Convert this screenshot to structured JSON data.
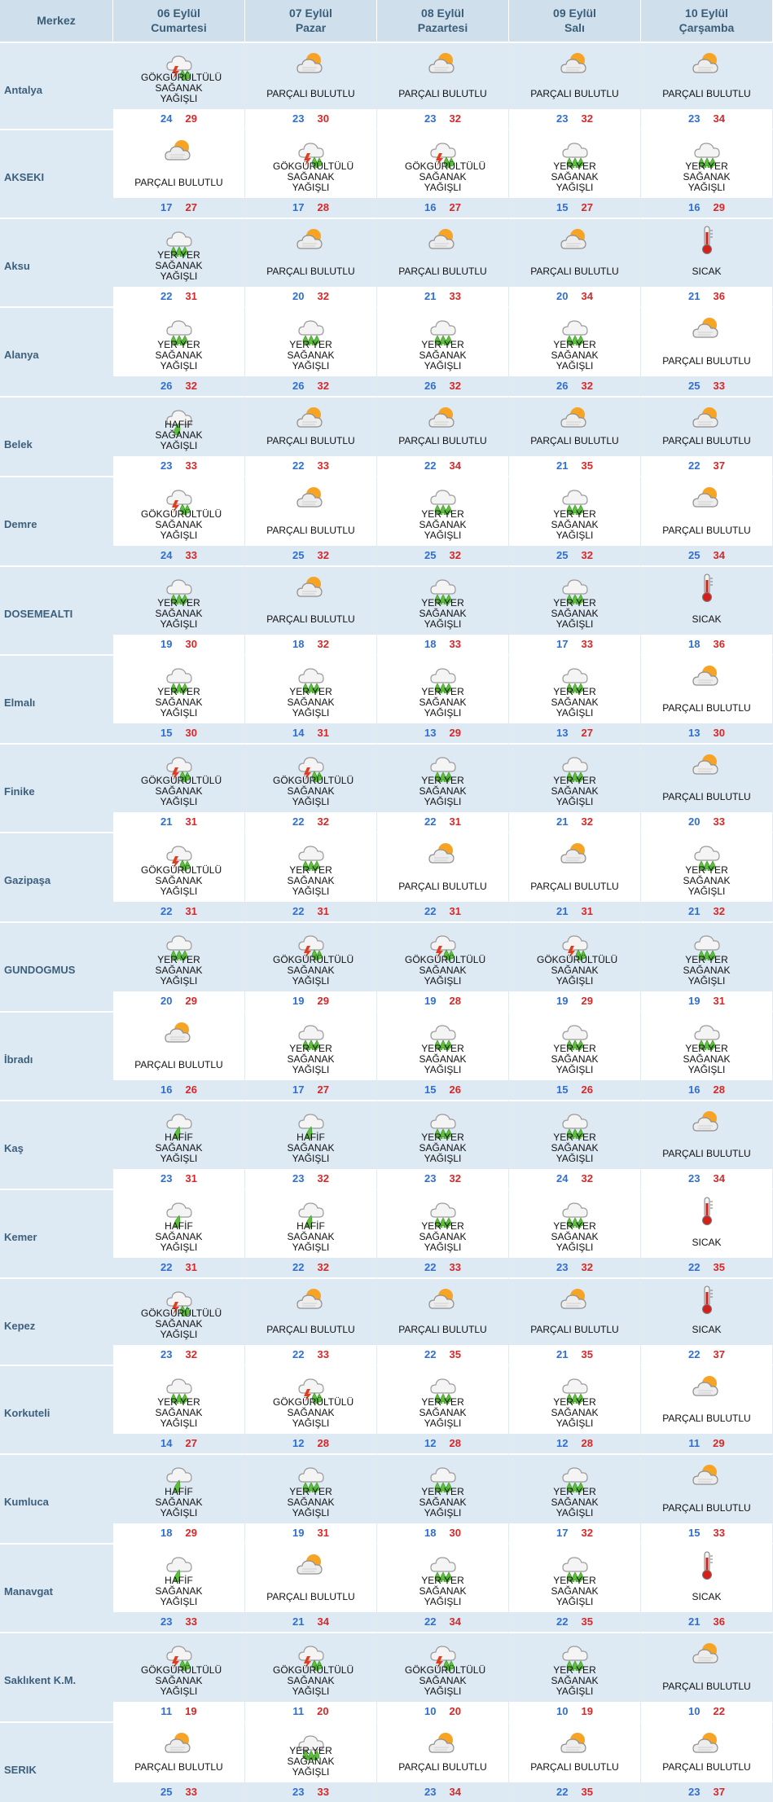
{
  "header": {
    "merkez": "Merkez",
    "days": [
      {
        "date": "06 Eylül",
        "weekday": "Cumartesi"
      },
      {
        "date": "07 Eylül",
        "weekday": "Pazar"
      },
      {
        "date": "08 Eylül",
        "weekday": "Pazartesi"
      },
      {
        "date": "09 Eylül",
        "weekday": "Salı"
      },
      {
        "date": "10 Eylül",
        "weekday": "Çarşamba"
      }
    ]
  },
  "conditions": {
    "T": "GÖKGÜRÜLTÜLÜ SAĞANAK YAĞIŞLI",
    "P": "PARÇALI BULUTLU",
    "Y": "YER YER SAĞANAK YAĞIŞLI",
    "H": "HAFİF SAĞANAK YAĞIŞLI",
    "S": "SICAK"
  },
  "icons": {
    "T": "thunderstorm-icon",
    "P": "partly-cloudy-icon",
    "Y": "scattered-showers-icon",
    "H": "light-showers-icon",
    "S": "thermometer-hot-icon"
  },
  "colors": {
    "header_bg": "#cfe0ec",
    "row_blue": "#dde9f3",
    "low_temp": "#2f6fd2",
    "high_temp": "#d62828"
  },
  "rows": [
    {
      "city": "Antalya",
      "days": [
        {
          "c": "T",
          "lo": 24,
          "hi": 29
        },
        {
          "c": "P",
          "lo": 23,
          "hi": 30
        },
        {
          "c": "P",
          "lo": 23,
          "hi": 32
        },
        {
          "c": "P",
          "lo": 23,
          "hi": 32
        },
        {
          "c": "P",
          "lo": 23,
          "hi": 34
        }
      ]
    },
    {
      "city": "AKSEKI",
      "days": [
        {
          "c": "P",
          "lo": 17,
          "hi": 27
        },
        {
          "c": "T",
          "lo": 17,
          "hi": 28
        },
        {
          "c": "T",
          "lo": 16,
          "hi": 27
        },
        {
          "c": "Y",
          "lo": 15,
          "hi": 27
        },
        {
          "c": "Y",
          "lo": 16,
          "hi": 29
        }
      ]
    },
    {
      "city": "Aksu",
      "days": [
        {
          "c": "Y",
          "lo": 22,
          "hi": 31
        },
        {
          "c": "P",
          "lo": 20,
          "hi": 32
        },
        {
          "c": "P",
          "lo": 21,
          "hi": 33
        },
        {
          "c": "P",
          "lo": 20,
          "hi": 34
        },
        {
          "c": "S",
          "lo": 21,
          "hi": 36
        }
      ]
    },
    {
      "city": "Alanya",
      "days": [
        {
          "c": "Y",
          "lo": 26,
          "hi": 32
        },
        {
          "c": "Y",
          "lo": 26,
          "hi": 32
        },
        {
          "c": "Y",
          "lo": 26,
          "hi": 32
        },
        {
          "c": "Y",
          "lo": 26,
          "hi": 32
        },
        {
          "c": "P",
          "lo": 25,
          "hi": 33
        }
      ]
    },
    {
      "city": "Belek",
      "days": [
        {
          "c": "H",
          "lo": 23,
          "hi": 33
        },
        {
          "c": "P",
          "lo": 22,
          "hi": 33
        },
        {
          "c": "P",
          "lo": 22,
          "hi": 34
        },
        {
          "c": "P",
          "lo": 21,
          "hi": 35
        },
        {
          "c": "P",
          "lo": 22,
          "hi": 37
        }
      ]
    },
    {
      "city": "Demre",
      "days": [
        {
          "c": "T",
          "lo": 24,
          "hi": 33
        },
        {
          "c": "P",
          "lo": 25,
          "hi": 32
        },
        {
          "c": "Y",
          "lo": 25,
          "hi": 32
        },
        {
          "c": "Y",
          "lo": 25,
          "hi": 32
        },
        {
          "c": "P",
          "lo": 25,
          "hi": 34
        }
      ]
    },
    {
      "city": "DOSEMEALTI",
      "days": [
        {
          "c": "Y",
          "lo": 19,
          "hi": 30
        },
        {
          "c": "P",
          "lo": 18,
          "hi": 32
        },
        {
          "c": "Y",
          "lo": 18,
          "hi": 33
        },
        {
          "c": "Y",
          "lo": 17,
          "hi": 33
        },
        {
          "c": "S",
          "lo": 18,
          "hi": 36
        }
      ]
    },
    {
      "city": "Elmalı",
      "days": [
        {
          "c": "Y",
          "lo": 15,
          "hi": 30
        },
        {
          "c": "Y",
          "lo": 14,
          "hi": 31
        },
        {
          "c": "Y",
          "lo": 13,
          "hi": 29
        },
        {
          "c": "Y",
          "lo": 13,
          "hi": 27
        },
        {
          "c": "P",
          "lo": 13,
          "hi": 30
        }
      ]
    },
    {
      "city": "Finike",
      "days": [
        {
          "c": "T",
          "lo": 21,
          "hi": 31
        },
        {
          "c": "T",
          "lo": 22,
          "hi": 32
        },
        {
          "c": "Y",
          "lo": 22,
          "hi": 31
        },
        {
          "c": "Y",
          "lo": 21,
          "hi": 32
        },
        {
          "c": "P",
          "lo": 20,
          "hi": 33
        }
      ]
    },
    {
      "city": "Gazipaşa",
      "days": [
        {
          "c": "T",
          "lo": 22,
          "hi": 31
        },
        {
          "c": "Y",
          "lo": 22,
          "hi": 31
        },
        {
          "c": "P",
          "lo": 22,
          "hi": 31
        },
        {
          "c": "P",
          "lo": 21,
          "hi": 31
        },
        {
          "c": "Y",
          "lo": 21,
          "hi": 32
        }
      ]
    },
    {
      "city": "GUNDOGMUS",
      "days": [
        {
          "c": "Y",
          "lo": 20,
          "hi": 29
        },
        {
          "c": "T",
          "lo": 19,
          "hi": 29
        },
        {
          "c": "T",
          "lo": 19,
          "hi": 28
        },
        {
          "c": "T",
          "lo": 19,
          "hi": 29
        },
        {
          "c": "Y",
          "lo": 19,
          "hi": 31
        }
      ]
    },
    {
      "city": "İbradı",
      "days": [
        {
          "c": "P",
          "lo": 16,
          "hi": 26
        },
        {
          "c": "Y",
          "lo": 17,
          "hi": 27
        },
        {
          "c": "Y",
          "lo": 15,
          "hi": 26
        },
        {
          "c": "Y",
          "lo": 15,
          "hi": 26
        },
        {
          "c": "Y",
          "lo": 16,
          "hi": 28
        }
      ]
    },
    {
      "city": "Kaş",
      "days": [
        {
          "c": "H",
          "lo": 23,
          "hi": 31
        },
        {
          "c": "H",
          "lo": 23,
          "hi": 32
        },
        {
          "c": "Y",
          "lo": 23,
          "hi": 32
        },
        {
          "c": "Y",
          "lo": 24,
          "hi": 32
        },
        {
          "c": "P",
          "lo": 23,
          "hi": 34
        }
      ]
    },
    {
      "city": "Kemer",
      "days": [
        {
          "c": "H",
          "lo": 22,
          "hi": 31
        },
        {
          "c": "H",
          "lo": 22,
          "hi": 32
        },
        {
          "c": "Y",
          "lo": 22,
          "hi": 33
        },
        {
          "c": "Y",
          "lo": 23,
          "hi": 32
        },
        {
          "c": "S",
          "lo": 22,
          "hi": 35
        }
      ]
    },
    {
      "city": "Kepez",
      "days": [
        {
          "c": "T",
          "lo": 23,
          "hi": 32
        },
        {
          "c": "P",
          "lo": 22,
          "hi": 33
        },
        {
          "c": "P",
          "lo": 22,
          "hi": 35
        },
        {
          "c": "P",
          "lo": 21,
          "hi": 35
        },
        {
          "c": "S",
          "lo": 22,
          "hi": 37
        }
      ]
    },
    {
      "city": "Korkuteli",
      "days": [
        {
          "c": "Y",
          "lo": 14,
          "hi": 27
        },
        {
          "c": "T",
          "lo": 12,
          "hi": 28
        },
        {
          "c": "Y",
          "lo": 12,
          "hi": 28
        },
        {
          "c": "Y",
          "lo": 12,
          "hi": 28
        },
        {
          "c": "P",
          "lo": 11,
          "hi": 29
        }
      ]
    },
    {
      "city": "Kumluca",
      "days": [
        {
          "c": "H",
          "lo": 18,
          "hi": 29
        },
        {
          "c": "Y",
          "lo": 19,
          "hi": 31
        },
        {
          "c": "Y",
          "lo": 18,
          "hi": 30
        },
        {
          "c": "Y",
          "lo": 17,
          "hi": 32
        },
        {
          "c": "P",
          "lo": 15,
          "hi": 33
        }
      ]
    },
    {
      "city": "Manavgat",
      "days": [
        {
          "c": "H",
          "lo": 23,
          "hi": 33
        },
        {
          "c": "P",
          "lo": 21,
          "hi": 34
        },
        {
          "c": "Y",
          "lo": 22,
          "hi": 34
        },
        {
          "c": "Y",
          "lo": 22,
          "hi": 35
        },
        {
          "c": "S",
          "lo": 21,
          "hi": 36
        }
      ]
    },
    {
      "city": "Saklıkent K.M.",
      "days": [
        {
          "c": "T",
          "lo": 11,
          "hi": 19
        },
        {
          "c": "T",
          "lo": 11,
          "hi": 20
        },
        {
          "c": "T",
          "lo": 10,
          "hi": 20
        },
        {
          "c": "Y",
          "lo": 10,
          "hi": 19
        },
        {
          "c": "P",
          "lo": 10,
          "hi": 22
        }
      ]
    },
    {
      "city": "SERIK",
      "days": [
        {
          "c": "P",
          "lo": 25,
          "hi": 33
        },
        {
          "c": "Y",
          "lo": 23,
          "hi": 33
        },
        {
          "c": "P",
          "lo": 23,
          "hi": 34
        },
        {
          "c": "P",
          "lo": 22,
          "hi": 35
        },
        {
          "c": "P",
          "lo": 23,
          "hi": 37
        }
      ]
    }
  ]
}
